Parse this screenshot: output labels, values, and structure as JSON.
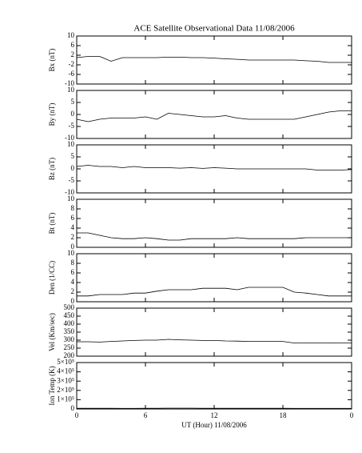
{
  "chart_data": [
    {
      "type": "line",
      "title": "ACE Satellite Observational Data   11/08/2006",
      "ylabel": "Bx (nT)",
      "xlim": [
        0,
        24
      ],
      "ylim": [
        -10,
        10
      ],
      "yticks": [
        -10,
        -6,
        -2,
        2,
        6,
        10
      ],
      "color": "#000000",
      "x": [
        0,
        1,
        2,
        3,
        4,
        5,
        6,
        7,
        8,
        9,
        10,
        11,
        12,
        13,
        14,
        15,
        16,
        17,
        18,
        19,
        20,
        21,
        22,
        23,
        24
      ],
      "values": [
        1,
        1.5,
        1.5,
        -0.5,
        1,
        1,
        1,
        1,
        1.2,
        1.2,
        1,
        1,
        0.8,
        0.5,
        0.3,
        0,
        0,
        0,
        0,
        0,
        -0.3,
        -0.5,
        -1,
        -1,
        -1
      ]
    },
    {
      "type": "line",
      "ylabel": "By (nT)",
      "xlim": [
        0,
        24
      ],
      "ylim": [
        -10,
        10
      ],
      "yticks": [
        -10,
        -5,
        0,
        5,
        10
      ],
      "color": "#000000",
      "x": [
        0,
        1,
        2,
        3,
        4,
        5,
        6,
        7,
        8,
        9,
        10,
        11,
        12,
        13,
        14,
        15,
        16,
        17,
        18,
        19,
        20,
        21,
        22,
        23,
        24
      ],
      "values": [
        -2,
        -3,
        -2,
        -1.5,
        -1.5,
        -1.5,
        -1,
        -2,
        0.5,
        0,
        -0.5,
        -1,
        -1,
        -0.5,
        -1.5,
        -2,
        -2,
        -2,
        -2,
        -2,
        -1,
        0,
        1,
        1.5,
        1.5
      ]
    },
    {
      "type": "line",
      "ylabel": "Bz (nT)",
      "xlim": [
        0,
        24
      ],
      "ylim": [
        -10,
        10
      ],
      "yticks": [
        -10,
        -5,
        0,
        5,
        10
      ],
      "color": "#000000",
      "x": [
        0,
        1,
        2,
        3,
        4,
        5,
        6,
        7,
        8,
        9,
        10,
        11,
        12,
        13,
        14,
        15,
        16,
        17,
        18,
        19,
        20,
        21,
        22,
        23,
        24
      ],
      "values": [
        1,
        1.5,
        1,
        1,
        0.5,
        1,
        0.5,
        0.5,
        0.5,
        0.3,
        0.5,
        0.2,
        0.5,
        0.3,
        0,
        0,
        0,
        0,
        0,
        0,
        0,
        -0.5,
        -0.5,
        -0.5,
        -0.3
      ]
    },
    {
      "type": "line",
      "ylabel": "Bt (nT)",
      "xlim": [
        0,
        24
      ],
      "ylim": [
        0,
        10
      ],
      "yticks": [
        0,
        2,
        4,
        6,
        8,
        10
      ],
      "color": "#000000",
      "x": [
        0,
        1,
        2,
        3,
        4,
        5,
        6,
        7,
        8,
        9,
        10,
        11,
        12,
        13,
        14,
        15,
        16,
        17,
        18,
        19,
        20,
        21,
        22,
        23,
        24
      ],
      "values": [
        3,
        3,
        2.5,
        2,
        1.8,
        1.8,
        2,
        1.8,
        1.5,
        1.5,
        1.8,
        1.8,
        1.8,
        1.8,
        2,
        1.8,
        1.8,
        1.8,
        1.8,
        1.8,
        2,
        2,
        2,
        2,
        2
      ]
    },
    {
      "type": "line",
      "ylabel": "Den (1/CC)",
      "xlim": [
        0,
        24
      ],
      "ylim": [
        0,
        10
      ],
      "yticks": [
        0,
        2,
        4,
        6,
        8,
        10
      ],
      "color": "#000000",
      "x": [
        0,
        1,
        2,
        3,
        4,
        5,
        6,
        7,
        8,
        9,
        10,
        11,
        12,
        13,
        14,
        15,
        16,
        17,
        18,
        19,
        20,
        21,
        22,
        23,
        24
      ],
      "values": [
        1.2,
        1.2,
        1.5,
        1.5,
        1.5,
        1.8,
        1.8,
        2.2,
        2.5,
        2.5,
        2.5,
        2.8,
        2.8,
        2.8,
        2.5,
        3,
        3,
        3,
        3,
        2,
        1.8,
        1.5,
        1.2,
        1.2,
        1.2
      ]
    },
    {
      "type": "line",
      "ylabel": "Vel (Km/sec)",
      "xlim": [
        0,
        24
      ],
      "ylim": [
        200,
        500
      ],
      "yticks": [
        200,
        250,
        300,
        350,
        400,
        450,
        500
      ],
      "color": "#000000",
      "x": [
        0,
        1,
        2,
        3,
        4,
        5,
        6,
        7,
        8,
        9,
        10,
        11,
        12,
        13,
        14,
        15,
        16,
        17,
        18,
        19,
        20,
        21,
        22,
        23,
        24
      ],
      "values": [
        290,
        290,
        288,
        292,
        295,
        298,
        300,
        300,
        305,
        302,
        300,
        298,
        298,
        295,
        294,
        292,
        292,
        292,
        292,
        282,
        282,
        283,
        283,
        282,
        282
      ]
    },
    {
      "type": "line",
      "ylabel": "Ion Temp (K)",
      "xlabel": "UT (Hour)  11/08/2006",
      "xlim": [
        0,
        24
      ],
      "xticks": [
        0,
        6,
        12,
        18,
        {
          "value": 24,
          "label": "0"
        }
      ],
      "ylim": [
        0,
        500000
      ],
      "yticks": [
        0,
        {
          "value": 100000,
          "label": "1×10⁵"
        },
        {
          "value": 200000,
          "label": "2×10⁵"
        },
        {
          "value": 300000,
          "label": "3×10⁵"
        },
        {
          "value": 400000,
          "label": "4×10⁵"
        },
        {
          "value": 500000,
          "label": "5×10⁵"
        }
      ],
      "color": "#000000",
      "x": [
        0,
        1,
        2,
        3,
        4,
        5,
        6,
        7,
        8,
        9,
        10,
        11,
        12,
        13,
        14,
        15,
        16,
        17,
        18,
        19,
        20,
        21,
        22,
        23,
        24
      ],
      "values": [
        8000,
        8000,
        7000,
        7000,
        6000,
        6000,
        7000,
        8000,
        9000,
        9000,
        9000,
        8000,
        8000,
        8000,
        8000,
        8000,
        8000,
        8000,
        8000,
        6000,
        6000,
        6000,
        6000,
        6000,
        6000
      ]
    }
  ]
}
